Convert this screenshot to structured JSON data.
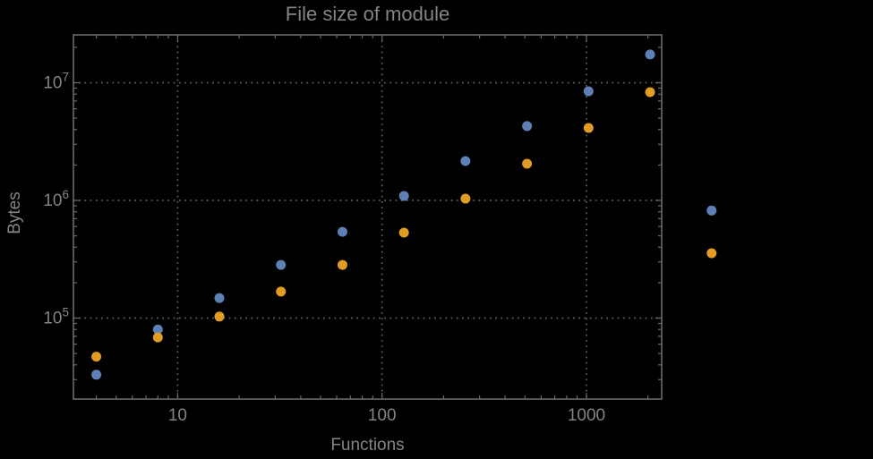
{
  "chart_data": {
    "type": "scatter",
    "title": "File size of module",
    "xlabel": "Functions",
    "ylabel": "Bytes",
    "x_scale": "log",
    "y_scale": "log",
    "xlim": [
      3.09,
      2334
    ],
    "ylim": [
      20500,
      25500000
    ],
    "grid": "dotted-major",
    "legend": "none",
    "x_ticks": [
      {
        "value": 10,
        "label": "10"
      },
      {
        "value": 100,
        "label": "100"
      },
      {
        "value": 1000,
        "label": "1000"
      }
    ],
    "y_ticks": [
      {
        "value": 100000,
        "mantissa": "10",
        "exponent": "5"
      },
      {
        "value": 1000000,
        "mantissa": "10",
        "exponent": "6"
      },
      {
        "value": 10000000,
        "mantissa": "10",
        "exponent": "7"
      }
    ],
    "series": [
      {
        "name": "blue",
        "color": "#5E81B5",
        "points": [
          [
            4,
            33000
          ],
          [
            8,
            80000
          ],
          [
            16,
            148000
          ],
          [
            32,
            283000
          ],
          [
            64,
            540000
          ],
          [
            128,
            1090000
          ],
          [
            256,
            2160000
          ],
          [
            512,
            4280000
          ],
          [
            1024,
            8470000
          ],
          [
            2048,
            17400000
          ],
          [
            4096,
            820000
          ]
        ]
      },
      {
        "name": "orange",
        "color": "#E19C24",
        "points": [
          [
            4,
            47000
          ],
          [
            8,
            68500
          ],
          [
            16,
            103000
          ],
          [
            32,
            168000
          ],
          [
            64,
            283000
          ],
          [
            128,
            532000
          ],
          [
            256,
            1035000
          ],
          [
            512,
            2050000
          ],
          [
            1024,
            4130000
          ],
          [
            2048,
            8320000
          ],
          [
            4096,
            356000
          ]
        ]
      }
    ],
    "colors": {
      "background": "#000000",
      "frame": "#696969",
      "grid": "#5d5d5d",
      "text": "#848484"
    }
  }
}
